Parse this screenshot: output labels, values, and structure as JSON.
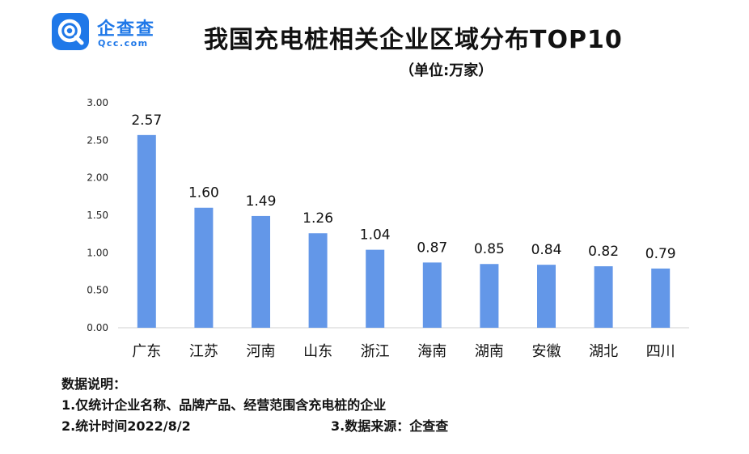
{
  "logo": {
    "name_cn": "企查查",
    "name_en": "Qcc.com",
    "icon": "magnifier-q-icon"
  },
  "title": "我国充电桩相关企业区域分布TOP10",
  "unit": "（单位:万家）",
  "colors": {
    "bar": "#6397e8",
    "axis": "#d0d0d0",
    "brand": "#1f78e8"
  },
  "chart_data": {
    "type": "bar",
    "categories": [
      "广东",
      "江苏",
      "河南",
      "山东",
      "浙江",
      "海南",
      "湖南",
      "安徽",
      "湖北",
      "四川"
    ],
    "values": [
      2.57,
      1.6,
      1.49,
      1.26,
      1.04,
      0.87,
      0.85,
      0.84,
      0.82,
      0.79
    ],
    "data_labels": [
      "2.57",
      "1.60",
      "1.49",
      "1.26",
      "1.04",
      "0.87",
      "0.85",
      "0.84",
      "0.82",
      "0.79"
    ],
    "y_ticks": [
      "0.00",
      "0.50",
      "1.00",
      "1.50",
      "2.00",
      "2.50",
      "3.00"
    ],
    "ylim": [
      0,
      3
    ],
    "title": "我国充电桩相关企业区域分布TOP10",
    "xlabel": "",
    "ylabel": "",
    "grid": false,
    "legend": "none"
  },
  "notes": {
    "heading": "数据说明：",
    "line1": "1.仅统计企业名称、品牌产品、经营范围含充电桩的企业",
    "line2": "2.统计时间2022/8/2",
    "source": "3.数据来源：企查查"
  }
}
